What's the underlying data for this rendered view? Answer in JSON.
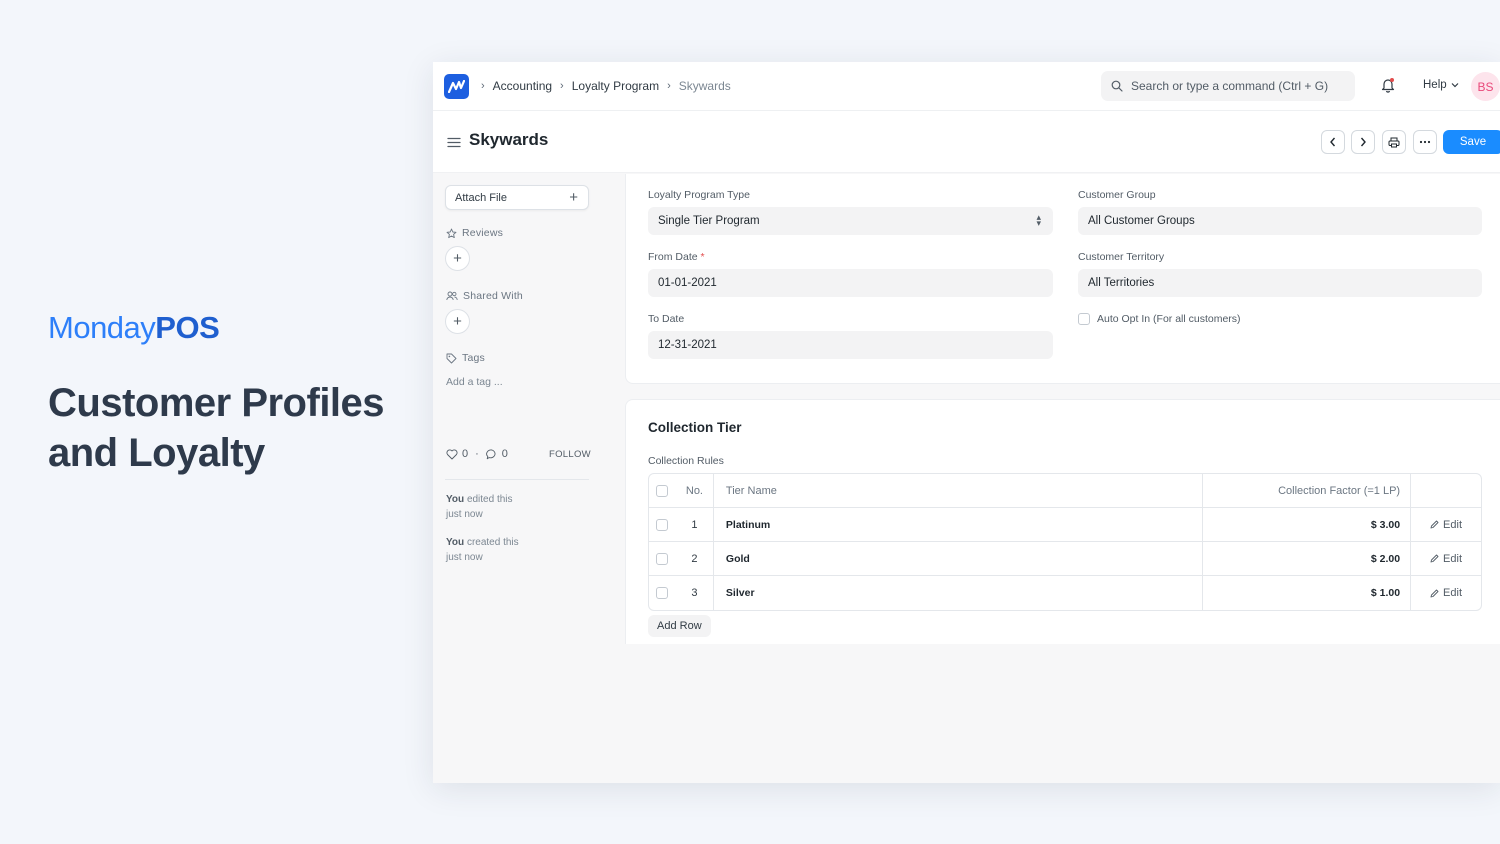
{
  "brand": {
    "light": "Monday",
    "bold": "POS"
  },
  "headline": "Customer Profiles and Loyalty",
  "navbar": {
    "breadcrumbs": [
      "Accounting",
      "Loyalty Program",
      "Skywards"
    ],
    "search_placeholder": "Search or type a command (Ctrl + G)",
    "help_label": "Help",
    "avatar_initials": "BS"
  },
  "page": {
    "title": "Skywards",
    "save_label": "Save"
  },
  "sidebar": {
    "attach_label": "Attach File",
    "reviews_label": "Reviews",
    "shared_label": "Shared With",
    "tags_label": "Tags",
    "add_tag": "Add a tag ...",
    "likes": "0",
    "comments": "0",
    "follow_label": "FOLLOW",
    "activity": [
      {
        "who": "You",
        "what": "edited this",
        "when": "just now"
      },
      {
        "who": "You",
        "what": "created this",
        "when": "just now"
      }
    ]
  },
  "form": {
    "program_type_label": "Loyalty Program Type",
    "program_type_value": "Single Tier Program",
    "from_date_label": "From Date",
    "from_date_value": "01-01-2021",
    "to_date_label": "To Date",
    "to_date_value": "12-31-2021",
    "customer_group_label": "Customer Group",
    "customer_group_value": "All Customer Groups",
    "customer_territory_label": "Customer Territory",
    "customer_territory_value": "All Territories",
    "auto_opt_in_label": "Auto Opt In (For all customers)"
  },
  "collection": {
    "section_title": "Collection Tier",
    "table_label": "Collection Rules",
    "columns": {
      "no": "No.",
      "tier_name": "Tier Name",
      "factor": "Collection Factor (=1 LP)"
    },
    "rows": [
      {
        "no": "1",
        "tier_name": "Platinum",
        "factor": "$ 3.00",
        "edit": "Edit"
      },
      {
        "no": "2",
        "tier_name": "Gold",
        "factor": "$ 2.00",
        "edit": "Edit"
      },
      {
        "no": "3",
        "tier_name": "Silver",
        "factor": "$ 1.00",
        "edit": "Edit"
      }
    ],
    "add_row_label": "Add Row"
  }
}
